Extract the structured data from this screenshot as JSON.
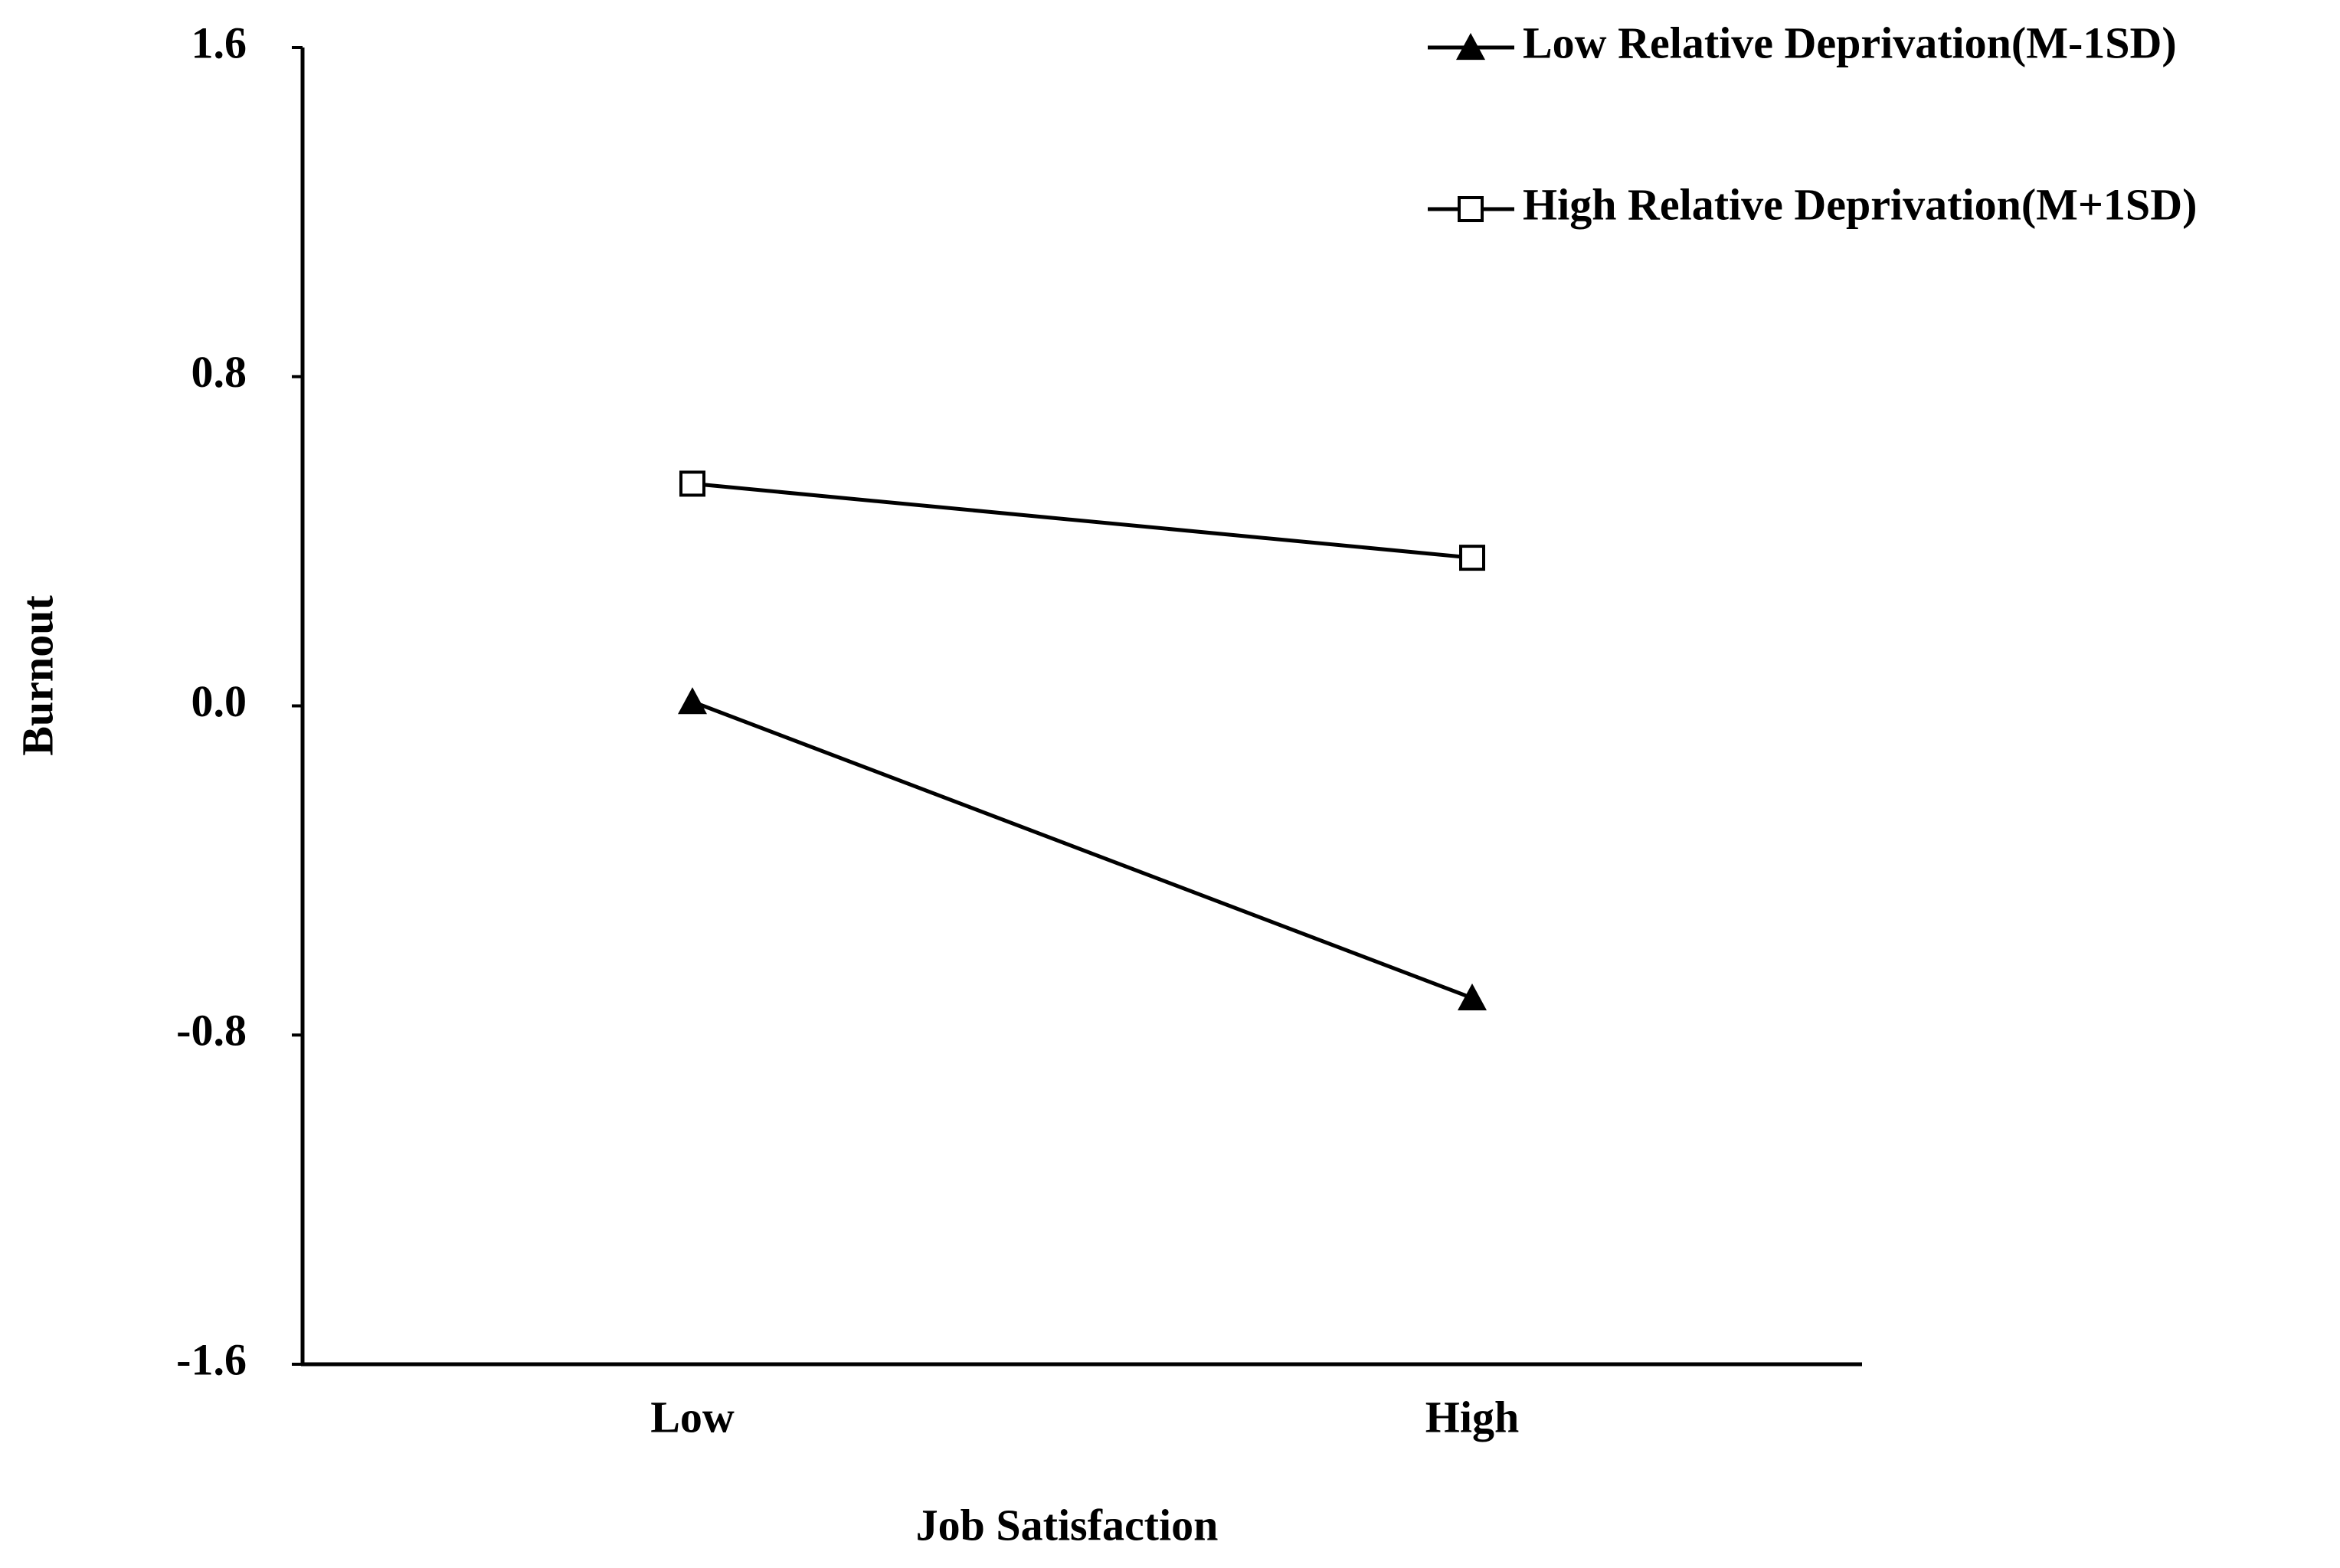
{
  "chart_data": {
    "type": "line",
    "x_label": "Job Satisfaction",
    "y_label": "Burnout",
    "categories": [
      "Low",
      "High"
    ],
    "series": [
      {
        "name": "Low Relative Deprivation(M-1SD)",
        "color": "#000000",
        "marker": "triangle",
        "values": [
          0.01,
          -0.71
        ]
      },
      {
        "name": "High Relative Deprivation(M+1SD)",
        "color": "#000000",
        "marker": "square",
        "values": [
          0.54,
          0.36
        ]
      }
    ],
    "ylim": [
      -1.6,
      1.6
    ],
    "yticks": [
      -1.6,
      -0.8,
      {
        "value": 0,
        "label": "0.0"
      },
      0.8,
      1.6
    ],
    "grid": false,
    "legend": "top-right"
  }
}
